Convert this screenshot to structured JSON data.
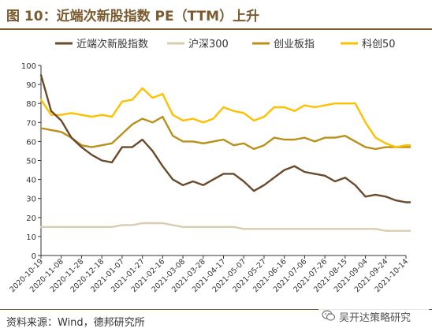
{
  "header": {
    "title": "图 10：近端次新股指数 PE（TTM）上升"
  },
  "source_note": "资料来源：Wind，德邦研究所",
  "watermark": {
    "text": "吴开达策略研究",
    "icon": "wechat-icon"
  },
  "colors": {
    "title": "#7a5a2e",
    "series": [
      "#6b4a2b",
      "#d9cdb0",
      "#b8901a",
      "#ffc000"
    ]
  },
  "chart_data": {
    "type": "line",
    "title": "",
    "xlabel": "",
    "ylabel": "",
    "ylim": [
      0,
      100
    ],
    "yticks": [
      0,
      10,
      20,
      30,
      40,
      50,
      60,
      70,
      80,
      90,
      100
    ],
    "grid": false,
    "legend_position": "top",
    "xticklabels": [
      "2020-10-19",
      "2020-11-08",
      "2020-11-28",
      "2020-12-18",
      "2021-01-07",
      "2021-01-27",
      "2021-02-16",
      "2021-03-08",
      "2021-03-28",
      "2021-04-17",
      "2021-05-07",
      "2021-05-27",
      "2021-06-16",
      "2021-07-06",
      "2021-07-26",
      "2021-08-15",
      "2021-09-04",
      "2021-09-24",
      "2021-10-14"
    ],
    "x": [
      "2020-10-19",
      "2020-10-29",
      "2020-11-08",
      "2020-11-18",
      "2020-11-28",
      "2020-12-08",
      "2020-12-18",
      "2020-12-28",
      "2021-01-07",
      "2021-01-17",
      "2021-01-27",
      "2021-02-06",
      "2021-02-16",
      "2021-02-26",
      "2021-03-08",
      "2021-03-18",
      "2021-03-28",
      "2021-04-07",
      "2021-04-17",
      "2021-04-27",
      "2021-05-07",
      "2021-05-17",
      "2021-05-27",
      "2021-06-06",
      "2021-06-16",
      "2021-06-26",
      "2021-07-06",
      "2021-07-16",
      "2021-07-26",
      "2021-08-05",
      "2021-08-15",
      "2021-08-25",
      "2021-09-04",
      "2021-09-14",
      "2021-09-24",
      "2021-10-04",
      "2021-10-14",
      "2021-10-18"
    ],
    "series": [
      {
        "name": "近端次新股指数",
        "color": "#6b4a2b",
        "values": [
          95,
          76,
          71,
          62,
          57,
          53,
          50,
          49,
          57,
          57,
          61,
          55,
          47,
          40,
          37,
          39,
          37,
          40,
          43,
          43,
          39,
          34,
          37,
          41,
          45,
          47,
          44,
          43,
          42,
          39,
          41,
          37,
          31,
          32,
          31,
          29,
          28,
          28
        ]
      },
      {
        "name": "沪深300",
        "color": "#d9cdb0",
        "values": [
          15,
          15,
          15,
          15,
          15,
          15,
          15,
          15,
          16,
          16,
          17,
          17,
          17,
          16,
          15,
          15,
          15,
          15,
          15,
          15,
          14,
          14,
          14,
          14,
          14,
          14,
          14,
          14,
          14,
          14,
          14,
          14,
          14,
          14,
          13,
          13,
          13,
          13
        ]
      },
      {
        "name": "创业板指",
        "color": "#b8901a",
        "values": [
          67,
          66,
          65,
          62,
          58,
          57,
          58,
          59,
          64,
          69,
          72,
          70,
          73,
          63,
          60,
          60,
          59,
          60,
          61,
          58,
          59,
          56,
          58,
          62,
          61,
          61,
          62,
          60,
          62,
          62,
          63,
          60,
          57,
          56,
          57,
          57,
          57,
          57
        ]
      },
      {
        "name": "科创50",
        "color": "#ffc000",
        "values": [
          82,
          74,
          74,
          75,
          74,
          73,
          74,
          73,
          81,
          82,
          88,
          83,
          85,
          74,
          71,
          72,
          70,
          72,
          78,
          76,
          75,
          71,
          73,
          78,
          78,
          76,
          79,
          78,
          79,
          80,
          80,
          80,
          70,
          62,
          59,
          57,
          58,
          58
        ]
      }
    ]
  }
}
